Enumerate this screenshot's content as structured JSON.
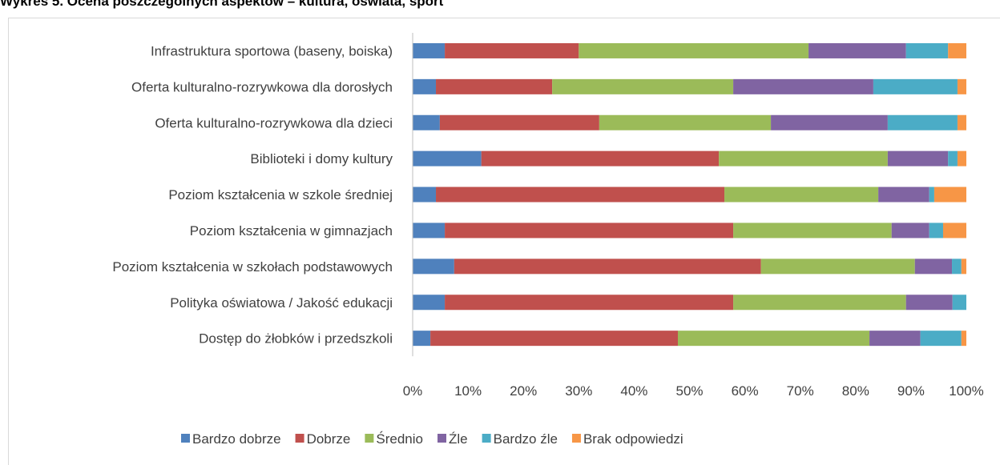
{
  "chart_data": {
    "type": "stacked_bar_horizontal",
    "title": "Wykres 5. Ocena poszczególnych aspektów – kultura, oświata, sport",
    "categories": [
      "Infrastruktura sportowa (baseny, boiska)",
      "Oferta kulturalno-rozrywkowa dla dorosłych",
      "Oferta kulturalno-rozrywkowa dla dzieci",
      "Biblioteki i domy kultury",
      "Poziom kształcenia w szkole średniej",
      "Poziom kształcenia w gimnazjach",
      "Poziom kształcenia w szkołach podstawowych",
      "Polityka oświatowa / Jakość edukacji",
      "Dostęp do żłobków i przedszkoli"
    ],
    "series": [
      {
        "name": "Bardzo dobrze",
        "color": "#4f81bd",
        "values": [
          5.8,
          4.2,
          4.9,
          12.4,
          4.2,
          5.8,
          7.5,
          5.8,
          3.2
        ]
      },
      {
        "name": "Dobrze",
        "color": "#c0504d",
        "values": [
          24.2,
          21.0,
          28.8,
          42.9,
          52.1,
          52.1,
          55.4,
          52.1,
          44.7
        ]
      },
      {
        "name": "Średnio",
        "color": "#9bbb59",
        "values": [
          41.5,
          32.7,
          31.0,
          30.5,
          27.8,
          28.6,
          27.8,
          31.2,
          34.6
        ]
      },
      {
        "name": "Źle",
        "color": "#8064a2",
        "values": [
          17.6,
          25.3,
          21.1,
          10.9,
          9.2,
          6.8,
          6.7,
          8.4,
          9.2
        ]
      },
      {
        "name": "Bardzo źle",
        "color": "#4bacc6",
        "values": [
          7.6,
          15.2,
          12.6,
          1.7,
          0.9,
          2.5,
          1.7,
          2.5,
          7.4
        ]
      },
      {
        "name": "Brak odpowiedzi",
        "color": "#f79646",
        "values": [
          3.3,
          1.6,
          1.6,
          1.6,
          5.8,
          4.2,
          0.9,
          0,
          0.9
        ]
      }
    ],
    "xlim": [
      0,
      100
    ],
    "xticks": [
      {
        "value": 0,
        "label": "0%"
      },
      {
        "value": 10,
        "label": "10%"
      },
      {
        "value": 20,
        "label": "20%"
      },
      {
        "value": 30,
        "label": "30%"
      },
      {
        "value": 40,
        "label": "40%"
      },
      {
        "value": 50,
        "label": "50%"
      },
      {
        "value": 60,
        "label": "60%"
      },
      {
        "value": 70,
        "label": "70%"
      },
      {
        "value": 80,
        "label": "80%"
      },
      {
        "value": 90,
        "label": "90%"
      },
      {
        "value": 100,
        "label": "100%"
      }
    ],
    "legend": "bottom"
  }
}
